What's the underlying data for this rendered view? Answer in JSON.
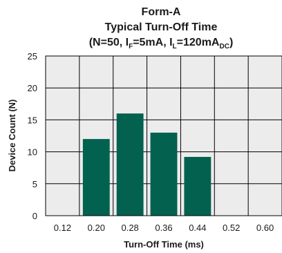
{
  "chart_data": {
    "type": "bar",
    "title_line1": "Form-A",
    "title_line2": "Typical Turn-Off Time",
    "title_line3_parts": {
      "open": "(N=50, I",
      "sub_f": "F",
      "mid1": "=5mA, I",
      "sub_l": "L",
      "mid2": "=120mA",
      "sub_dc": "DC",
      "close": ")"
    },
    "xlabel": "Turn-Off Time (ms)",
    "ylabel": "Device Count (N)",
    "x_ticks": [
      "0.12",
      "0.20",
      "0.28",
      "0.36",
      "0.44",
      "0.52",
      "0.60"
    ],
    "y_ticks": [
      0,
      5,
      10,
      15,
      20,
      25
    ],
    "ylim": [
      0,
      25
    ],
    "categories": [
      "0.20",
      "0.28",
      "0.36",
      "0.44"
    ],
    "values": [
      12,
      16,
      13,
      9.2
    ],
    "grid": true,
    "bar_color": "#03614f",
    "grid_color": "#000000",
    "plot_bg": "#ececec"
  }
}
